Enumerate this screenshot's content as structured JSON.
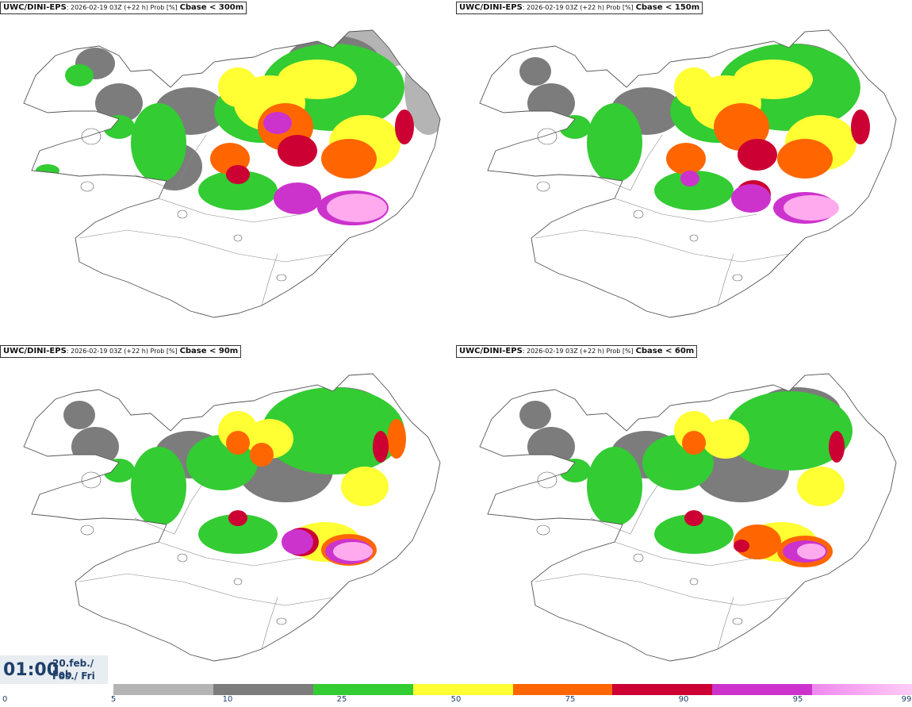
{
  "panels": [
    {
      "model": "UWC/DINI-EPS",
      "meta": ": 2026-02-19 03Z (+22 h) Prob [%]",
      "var": "Cbase < 300m"
    },
    {
      "model": "UWC/DINI-EPS",
      "meta": ": 2026-02-19 03Z (+22 h) Prob [%]",
      "var": "Cbase < 150m"
    },
    {
      "model": "UWC/DINI-EPS",
      "meta": ": 2026-02-19 03Z (+22 h) Prob [%]",
      "var": "Cbase < 90m"
    },
    {
      "model": "UWC/DINI-EPS",
      "meta": ": 2026-02-19 03Z (+22 h) Prob [%]",
      "var": "Cbase < 60m"
    }
  ],
  "time": {
    "clock": "01:00",
    "date": "20.feb./ Feb",
    "day": "Fös./ Fri"
  },
  "colorbar": {
    "ticks": [
      "0",
      "5",
      "10",
      "25",
      "50",
      "75",
      "90",
      "95",
      "99"
    ],
    "colors": [
      "#b4b4b4",
      "#7c7c7c",
      "#33cc33",
      "#ffff33",
      "#ff6600",
      "#cc0033",
      "#cc33cc",
      "#ffaaee"
    ]
  },
  "map": {
    "outline_color": "#555555",
    "road_color": "#888888"
  }
}
